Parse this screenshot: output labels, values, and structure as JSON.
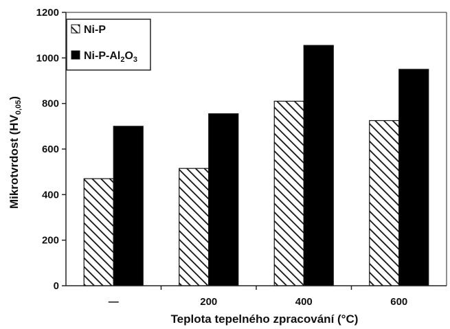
{
  "chart_data": {
    "type": "bar",
    "categories": [
      "—",
      "200",
      "400",
      "600"
    ],
    "xlabel": "Teplota tepelného zpracování (°C)",
    "ylabel": {
      "prefix": "Mikrotvrdost (HV",
      "subscript": "0,05",
      "suffix": ")"
    },
    "ylim": [
      0,
      1200
    ],
    "yticks": [
      0,
      200,
      400,
      600,
      800,
      1000,
      1200
    ],
    "grid": false,
    "legend_position": "top-left",
    "series": [
      {
        "name": "Ni-P",
        "legend_parts": [
          {
            "t": "Ni-P"
          }
        ],
        "fill": "hatched",
        "color": "#111111",
        "values": [
          470,
          515,
          810,
          725
        ]
      },
      {
        "name": "Ni-P-Al2O3",
        "legend_parts": [
          {
            "t": "Ni-P-Al"
          },
          {
            "t": "2",
            "sub": true
          },
          {
            "t": "O"
          },
          {
            "t": "3",
            "sub": true
          }
        ],
        "fill": "solid",
        "color": "#000000",
        "values": [
          700,
          755,
          1055,
          950
        ]
      }
    ]
  }
}
